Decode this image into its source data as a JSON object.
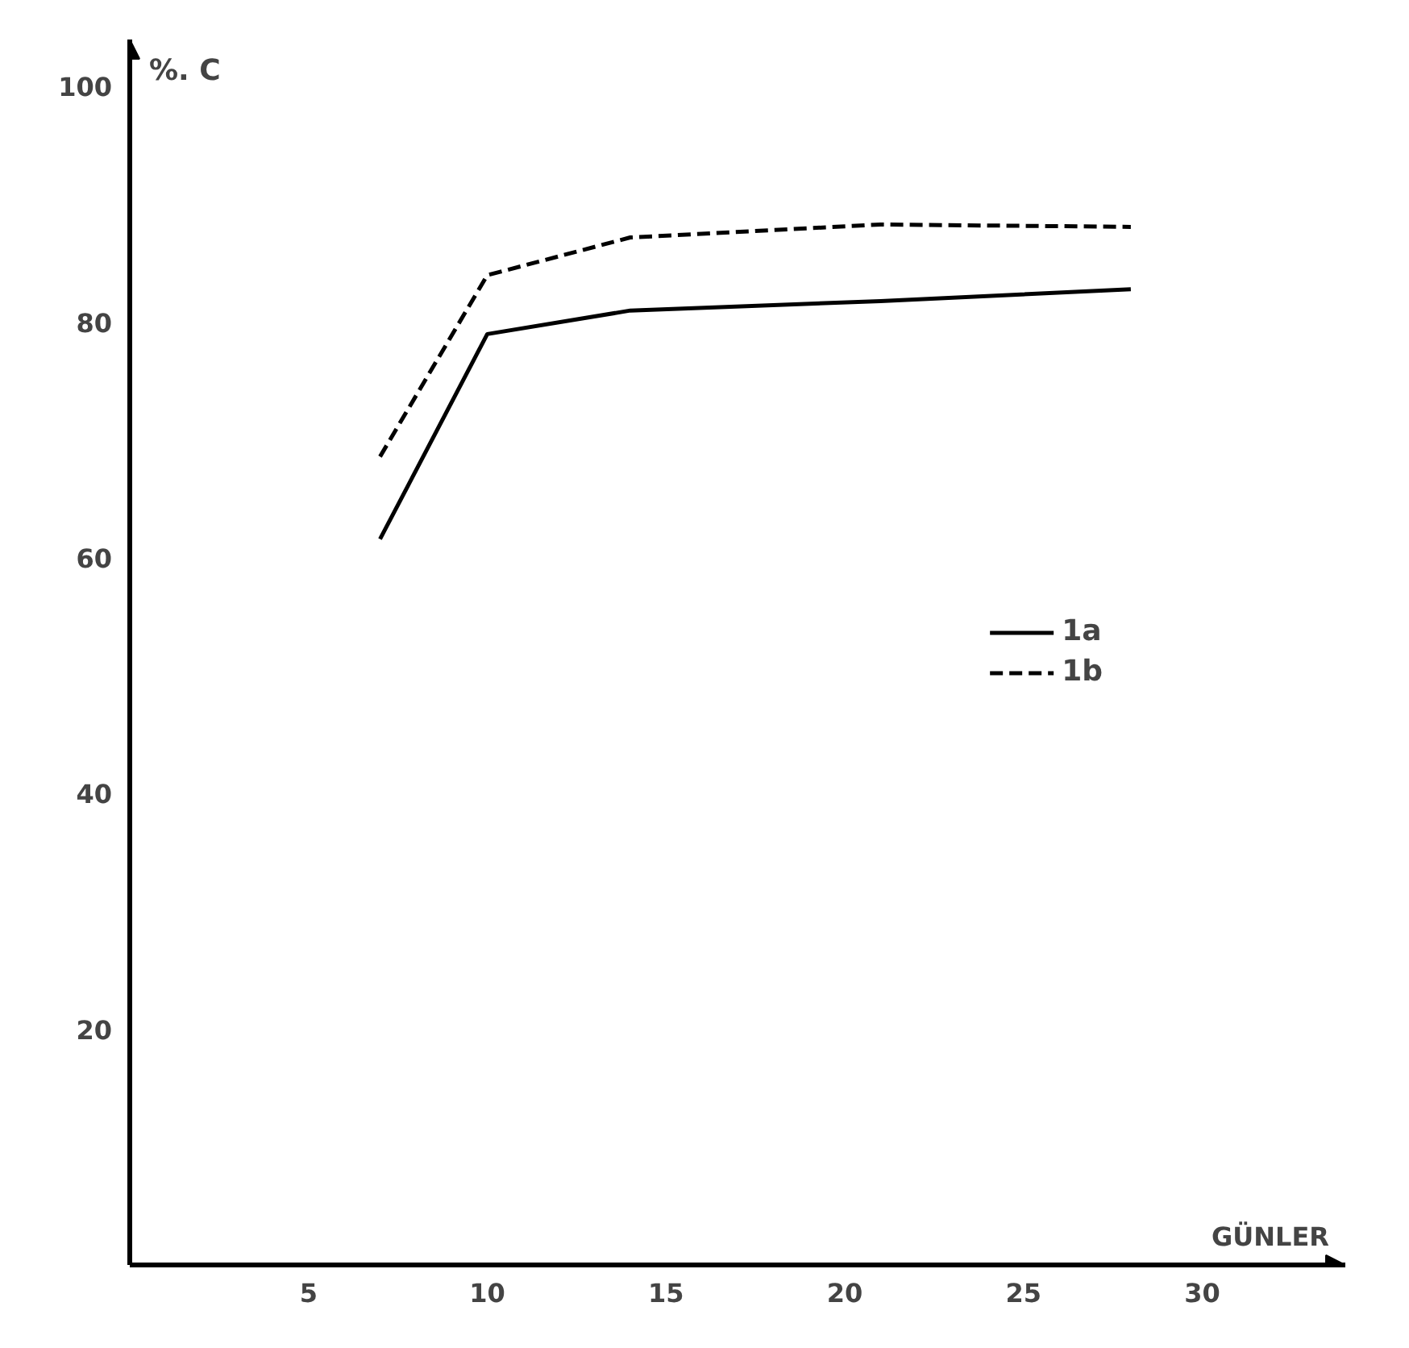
{
  "chart_data": {
    "type": "line",
    "xlabel": "GÜNLER",
    "ylabel": "%. C",
    "x": [
      7,
      10,
      14,
      21,
      28
    ],
    "series": [
      {
        "name": "1a",
        "color": "#000000",
        "line_style": "solid",
        "values": [
          61.6,
          79,
          81,
          81.8,
          82.8
        ]
      },
      {
        "name": "1b",
        "color": "#000000",
        "line_style": "dashed",
        "values": [
          68.6,
          84,
          87.2,
          88.3,
          88.1
        ]
      }
    ],
    "xlim": [
      0,
      34
    ],
    "ylim": [
      0,
      104
    ],
    "xticks": [
      5,
      10,
      15,
      20,
      25,
      30
    ],
    "yticks": [
      20,
      40,
      60,
      80,
      100
    ],
    "grid": false,
    "legend": "right",
    "marker": "none"
  }
}
